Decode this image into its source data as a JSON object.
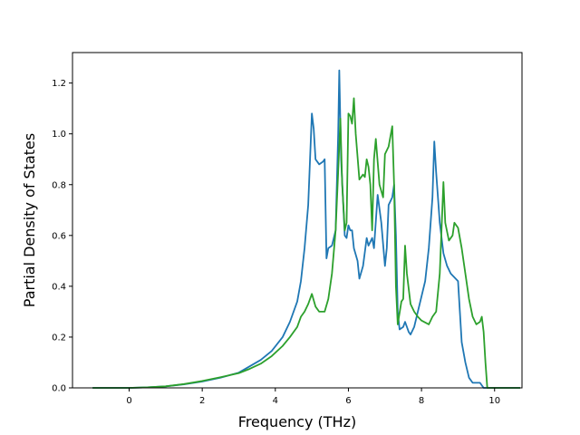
{
  "chart_data": {
    "type": "line",
    "xlabel": "Frequency (THz)",
    "ylabel": "Partial Density of States",
    "xlim": [
      -1.55,
      10.75
    ],
    "ylim": [
      0.0,
      1.32
    ],
    "xticks": [
      "0",
      "2",
      "4",
      "6",
      "8",
      "10"
    ],
    "yticks": [
      "0.0",
      "0.2",
      "0.4",
      "0.6",
      "0.8",
      "1.0",
      "1.2"
    ],
    "grid": false,
    "colors": [
      "#1f77b4",
      "#2ca02c"
    ],
    "series": [
      {
        "points": [
          [
            -1.0,
            0.0
          ],
          [
            0.0,
            0.0
          ],
          [
            0.5,
            0.002
          ],
          [
            1.0,
            0.006
          ],
          [
            1.5,
            0.014
          ],
          [
            2.0,
            0.025
          ],
          [
            2.5,
            0.04
          ],
          [
            3.0,
            0.06
          ],
          [
            3.3,
            0.085
          ],
          [
            3.6,
            0.11
          ],
          [
            3.9,
            0.145
          ],
          [
            4.2,
            0.2
          ],
          [
            4.4,
            0.26
          ],
          [
            4.6,
            0.34
          ],
          [
            4.7,
            0.42
          ],
          [
            4.8,
            0.55
          ],
          [
            4.9,
            0.72
          ],
          [
            4.95,
            0.9
          ],
          [
            5.0,
            1.08
          ],
          [
            5.05,
            1.02
          ],
          [
            5.1,
            0.9
          ],
          [
            5.2,
            0.88
          ],
          [
            5.3,
            0.89
          ],
          [
            5.35,
            0.9
          ],
          [
            5.4,
            0.51
          ],
          [
            5.45,
            0.55
          ],
          [
            5.55,
            0.56
          ],
          [
            5.65,
            0.62
          ],
          [
            5.72,
            1.0
          ],
          [
            5.75,
            1.25
          ],
          [
            5.8,
            0.9
          ],
          [
            5.9,
            0.6
          ],
          [
            5.95,
            0.59
          ],
          [
            6.0,
            0.64
          ],
          [
            6.05,
            0.62
          ],
          [
            6.1,
            0.62
          ],
          [
            6.15,
            0.55
          ],
          [
            6.25,
            0.5
          ],
          [
            6.3,
            0.43
          ],
          [
            6.4,
            0.48
          ],
          [
            6.5,
            0.59
          ],
          [
            6.55,
            0.56
          ],
          [
            6.65,
            0.59
          ],
          [
            6.7,
            0.55
          ],
          [
            6.8,
            0.76
          ],
          [
            6.9,
            0.65
          ],
          [
            7.0,
            0.48
          ],
          [
            7.05,
            0.55
          ],
          [
            7.1,
            0.72
          ],
          [
            7.2,
            0.75
          ],
          [
            7.25,
            0.8
          ],
          [
            7.3,
            0.6
          ],
          [
            7.35,
            0.3
          ],
          [
            7.4,
            0.23
          ],
          [
            7.5,
            0.24
          ],
          [
            7.55,
            0.26
          ],
          [
            7.65,
            0.22
          ],
          [
            7.7,
            0.21
          ],
          [
            7.8,
            0.24
          ],
          [
            7.9,
            0.3
          ],
          [
            8.0,
            0.36
          ],
          [
            8.1,
            0.42
          ],
          [
            8.2,
            0.55
          ],
          [
            8.3,
            0.75
          ],
          [
            8.35,
            0.97
          ],
          [
            8.4,
            0.85
          ],
          [
            8.5,
            0.65
          ],
          [
            8.6,
            0.53
          ],
          [
            8.7,
            0.48
          ],
          [
            8.8,
            0.45
          ],
          [
            9.0,
            0.42
          ],
          [
            9.05,
            0.3
          ],
          [
            9.1,
            0.18
          ],
          [
            9.2,
            0.1
          ],
          [
            9.3,
            0.04
          ],
          [
            9.4,
            0.02
          ],
          [
            9.5,
            0.02
          ],
          [
            9.6,
            0.02
          ],
          [
            9.7,
            0.0
          ],
          [
            10.0,
            0.0
          ],
          [
            10.7,
            0.0
          ]
        ]
      },
      {
        "points": [
          [
            -1.0,
            0.0
          ],
          [
            0.0,
            0.0
          ],
          [
            0.5,
            0.002
          ],
          [
            1.0,
            0.006
          ],
          [
            1.5,
            0.015
          ],
          [
            2.0,
            0.027
          ],
          [
            2.5,
            0.042
          ],
          [
            3.0,
            0.058
          ],
          [
            3.3,
            0.075
          ],
          [
            3.6,
            0.095
          ],
          [
            3.9,
            0.125
          ],
          [
            4.2,
            0.165
          ],
          [
            4.4,
            0.2
          ],
          [
            4.6,
            0.24
          ],
          [
            4.7,
            0.28
          ],
          [
            4.8,
            0.3
          ],
          [
            4.9,
            0.33
          ],
          [
            5.0,
            0.37
          ],
          [
            5.1,
            0.32
          ],
          [
            5.2,
            0.3
          ],
          [
            5.35,
            0.3
          ],
          [
            5.45,
            0.35
          ],
          [
            5.55,
            0.45
          ],
          [
            5.65,
            0.62
          ],
          [
            5.72,
            0.85
          ],
          [
            5.78,
            1.06
          ],
          [
            5.83,
            0.8
          ],
          [
            5.9,
            0.62
          ],
          [
            5.95,
            0.65
          ],
          [
            6.0,
            1.08
          ],
          [
            6.05,
            1.07
          ],
          [
            6.1,
            1.04
          ],
          [
            6.15,
            1.14
          ],
          [
            6.2,
            1.0
          ],
          [
            6.3,
            0.82
          ],
          [
            6.4,
            0.84
          ],
          [
            6.45,
            0.83
          ],
          [
            6.5,
            0.9
          ],
          [
            6.55,
            0.87
          ],
          [
            6.6,
            0.8
          ],
          [
            6.65,
            0.62
          ],
          [
            6.7,
            0.9
          ],
          [
            6.75,
            0.98
          ],
          [
            6.85,
            0.8
          ],
          [
            6.95,
            0.75
          ],
          [
            7.0,
            0.92
          ],
          [
            7.1,
            0.95
          ],
          [
            7.2,
            1.03
          ],
          [
            7.25,
            0.8
          ],
          [
            7.3,
            0.4
          ],
          [
            7.35,
            0.25
          ],
          [
            7.45,
            0.34
          ],
          [
            7.5,
            0.35
          ],
          [
            7.55,
            0.56
          ],
          [
            7.6,
            0.45
          ],
          [
            7.7,
            0.33
          ],
          [
            7.8,
            0.3
          ],
          [
            7.9,
            0.28
          ],
          [
            8.0,
            0.265
          ],
          [
            8.2,
            0.25
          ],
          [
            8.3,
            0.28
          ],
          [
            8.4,
            0.3
          ],
          [
            8.5,
            0.45
          ],
          [
            8.6,
            0.81
          ],
          [
            8.65,
            0.65
          ],
          [
            8.75,
            0.58
          ],
          [
            8.85,
            0.6
          ],
          [
            8.9,
            0.65
          ],
          [
            9.0,
            0.63
          ],
          [
            9.1,
            0.55
          ],
          [
            9.2,
            0.45
          ],
          [
            9.3,
            0.35
          ],
          [
            9.4,
            0.28
          ],
          [
            9.5,
            0.25
          ],
          [
            9.6,
            0.26
          ],
          [
            9.65,
            0.28
          ],
          [
            9.7,
            0.22
          ],
          [
            9.75,
            0.1
          ],
          [
            9.8,
            0.0
          ],
          [
            10.0,
            0.0
          ],
          [
            10.7,
            0.0
          ]
        ]
      }
    ]
  }
}
